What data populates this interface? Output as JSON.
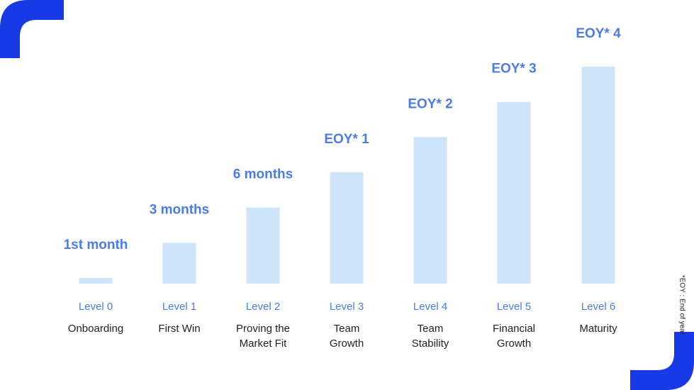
{
  "theme": {
    "accent": "#1739e6",
    "bar": "#cde4fb",
    "label_blue": "#4c7be9",
    "text": "#1f1f1f"
  },
  "footnote": "*EOY : End of year",
  "chart_data": {
    "type": "bar",
    "categories": [
      "Level 0",
      "Level 1",
      "Level 2",
      "Level 3",
      "Level 4",
      "Level 5",
      "Level 6"
    ],
    "stages": [
      [
        "Onboarding"
      ],
      [
        "First Win"
      ],
      [
        "Proving the",
        "Market Fit"
      ],
      [
        "Team",
        "Growth"
      ],
      [
        "Team",
        "Stability"
      ],
      [
        "Financial",
        "Growth"
      ],
      [
        "Maturity"
      ]
    ],
    "labels": [
      "1st month",
      "3 months",
      "6 months",
      "EOY* 1",
      "EOY* 2",
      "EOY* 3",
      "EOY* 4"
    ],
    "values": [
      0,
      1,
      2,
      3,
      4,
      5,
      6
    ],
    "ylim": [
      0,
      6
    ]
  }
}
